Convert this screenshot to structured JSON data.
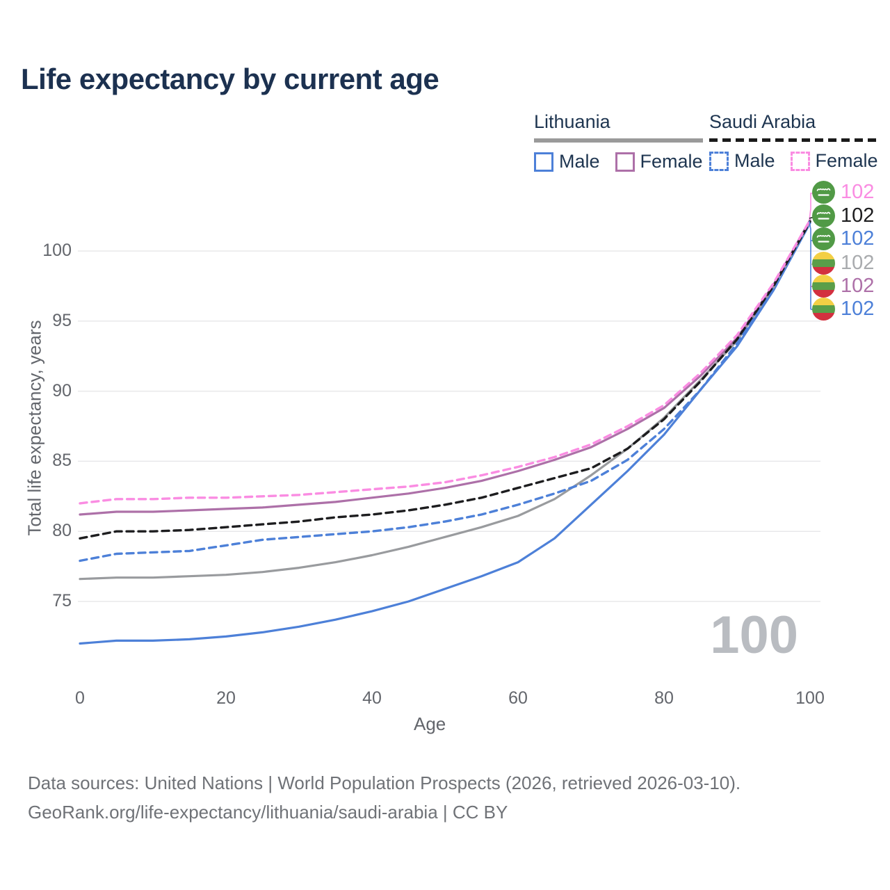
{
  "title": "Life expectancy by current age",
  "legend": {
    "groups": [
      {
        "country": "Lithuania",
        "line_style": "solid",
        "underline_color": "#9a9a9a",
        "items": [
          {
            "label": "Male",
            "color": "#4d80d8",
            "dashed": false
          },
          {
            "label": "Female",
            "color": "#ad70a8",
            "dashed": false
          }
        ]
      },
      {
        "country": "Saudi Arabia",
        "line_style": "dashed",
        "underline_color": "#1a1a1a",
        "items": [
          {
            "label": "Male",
            "color": "#4d80d8",
            "dashed": true
          },
          {
            "label": "Female",
            "color": "#fa8ce2",
            "dashed": true
          }
        ]
      }
    ]
  },
  "watermark": "100",
  "footer": {
    "line1": "Data sources: United Nations | World Population Prospects (2026, retrieved 2026-03-10).",
    "line2": "GeoRank.org/life-expectancy/lithuania/saudi-arabia | CC BY"
  },
  "chart_data": {
    "type": "line",
    "title": "Life expectancy by current age",
    "xlabel": "Age",
    "ylabel": "Total life expectancy, years",
    "xticks": [
      0,
      20,
      40,
      60,
      80,
      100
    ],
    "yticks": [
      75,
      80,
      85,
      90,
      95,
      100
    ],
    "xlim": [
      0,
      100
    ],
    "ylim": [
      71.5,
      103
    ],
    "grid": "horizontal-only",
    "x": [
      0,
      5,
      10,
      15,
      20,
      25,
      30,
      35,
      40,
      45,
      50,
      55,
      60,
      65,
      70,
      75,
      80,
      85,
      90,
      95,
      100
    ],
    "series": [
      {
        "name": "Lithuania Male",
        "country": "Lithuania",
        "sex": "Male",
        "color": "#4d80d8",
        "dashed": false,
        "end_label": "102",
        "values": [
          72.0,
          72.2,
          72.2,
          72.3,
          72.5,
          72.8,
          73.2,
          73.7,
          74.3,
          75.0,
          75.9,
          76.8,
          77.8,
          79.5,
          81.9,
          84.3,
          86.9,
          90.1,
          93.2,
          97.2,
          102.0
        ]
      },
      {
        "name": "Lithuania Both sexes",
        "country": "Lithuania",
        "sex": "Both sexes",
        "color": "#999b9e",
        "dashed": false,
        "end_label": "102",
        "values": [
          76.6,
          76.7,
          76.7,
          76.8,
          76.9,
          77.1,
          77.4,
          77.8,
          78.3,
          78.9,
          79.6,
          80.3,
          81.1,
          82.3,
          84.0,
          85.9,
          88.1,
          90.8,
          93.6,
          97.4,
          102.1
        ]
      },
      {
        "name": "Lithuania Female",
        "country": "Lithuania",
        "sex": "Female",
        "color": "#ad70a8",
        "dashed": false,
        "end_label": "102",
        "values": [
          81.2,
          81.4,
          81.4,
          81.5,
          81.6,
          81.7,
          81.9,
          82.1,
          82.4,
          82.7,
          83.1,
          83.6,
          84.3,
          85.1,
          86.0,
          87.3,
          88.8,
          91.1,
          93.8,
          97.6,
          102.2
        ]
      },
      {
        "name": "Saudi Arabia Male",
        "country": "Saudi Arabia",
        "sex": "Male",
        "color": "#4d80d8",
        "dashed": true,
        "end_label": "102",
        "values": [
          77.9,
          78.4,
          78.5,
          78.6,
          79.0,
          79.4,
          79.6,
          79.8,
          80.0,
          80.3,
          80.7,
          81.2,
          81.9,
          82.7,
          83.6,
          85.1,
          87.3,
          90.1,
          93.4,
          97.4,
          102.1
        ]
      },
      {
        "name": "Saudi Arabia Both sexes",
        "country": "Saudi Arabia",
        "sex": "Both sexes",
        "color": "#1d1d1f",
        "dashed": true,
        "end_label": "102",
        "values": [
          79.5,
          80.0,
          80.0,
          80.1,
          80.3,
          80.5,
          80.7,
          81.0,
          81.2,
          81.5,
          81.9,
          82.4,
          83.1,
          83.8,
          84.5,
          85.9,
          88.0,
          90.7,
          93.7,
          97.5,
          102.1
        ]
      },
      {
        "name": "Saudi Arabia Female",
        "country": "Saudi Arabia",
        "sex": "Female",
        "color": "#fa8ce2",
        "dashed": true,
        "end_label": "102",
        "values": [
          82.0,
          82.3,
          82.3,
          82.4,
          82.4,
          82.5,
          82.6,
          82.8,
          83.0,
          83.2,
          83.5,
          84.0,
          84.6,
          85.3,
          86.2,
          87.5,
          89.0,
          91.3,
          94.0,
          97.7,
          102.2
        ]
      }
    ],
    "right_labels": [
      {
        "series": "Saudi Arabia Female",
        "flag": "saudi-arabia",
        "value": "102",
        "color": "#fa8ce2"
      },
      {
        "series": "Saudi Arabia Both sexes",
        "flag": "saudi-arabia",
        "value": "102",
        "color": "#1d1d1f"
      },
      {
        "series": "Saudi Arabia Male",
        "flag": "saudi-arabia",
        "value": "102",
        "color": "#4d80d8"
      },
      {
        "series": "Lithuania Both sexes",
        "flag": "lithuania",
        "value": "102",
        "color": "#a9abae"
      },
      {
        "series": "Lithuania Female",
        "flag": "lithuania",
        "value": "102",
        "color": "#ad70a8"
      },
      {
        "series": "Lithuania Male",
        "flag": "lithuania",
        "value": "102",
        "color": "#4d80d8"
      }
    ],
    "flag_colors": {
      "saudi_green": "#519a46",
      "lithuania_yellow": "#f3cf45",
      "lithuania_green": "#5a9e49",
      "lithuania_red": "#d3303f"
    },
    "watermark_current_age": "100"
  }
}
